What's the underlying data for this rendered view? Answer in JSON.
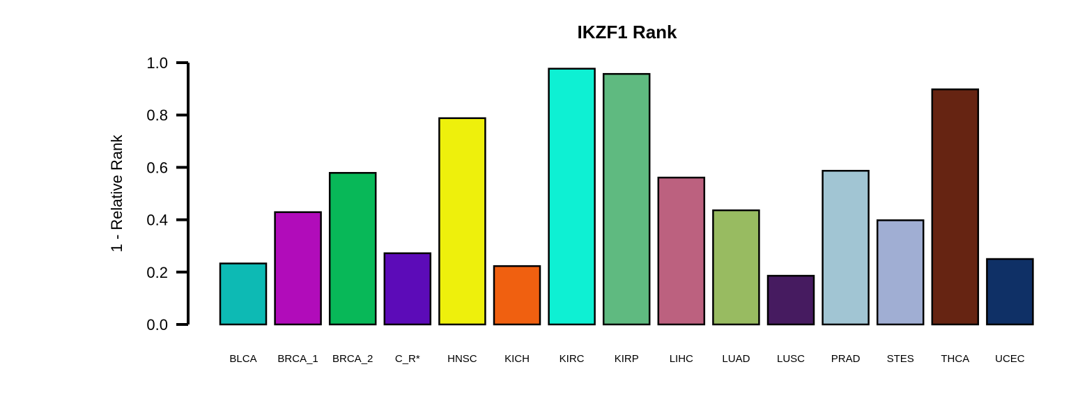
{
  "chart_data": {
    "type": "bar",
    "title": "IKZF1 Rank",
    "xlabel": "",
    "ylabel": "1 - Relative Rank",
    "ylim": [
      0,
      1.0
    ],
    "yticks": [
      "0.0",
      "0.2",
      "0.4",
      "0.6",
      "0.8",
      "1.0"
    ],
    "grid": false,
    "categories": [
      "BLCA",
      "BRCA_1",
      "BRCA_2",
      "C_R*",
      "HNSC",
      "KICH",
      "KIRC",
      "KIRP",
      "LIHC",
      "LUAD",
      "LUSC",
      "PRAD",
      "STES",
      "THCA",
      "UCEC"
    ],
    "values": [
      0.233,
      0.429,
      0.579,
      0.272,
      0.788,
      0.223,
      0.977,
      0.957,
      0.561,
      0.436,
      0.186,
      0.587,
      0.398,
      0.898,
      0.25
    ],
    "colors": [
      "#0DBAB4",
      "#B10CBA",
      "#08B858",
      "#5C0BB8",
      "#EEF00C",
      "#F06010",
      "#0EF0D3",
      "#5FBA80",
      "#BC617F",
      "#98BB61",
      "#461B60",
      "#A1C5D3",
      "#A0AED3",
      "#662412",
      "#0F3066"
    ]
  }
}
